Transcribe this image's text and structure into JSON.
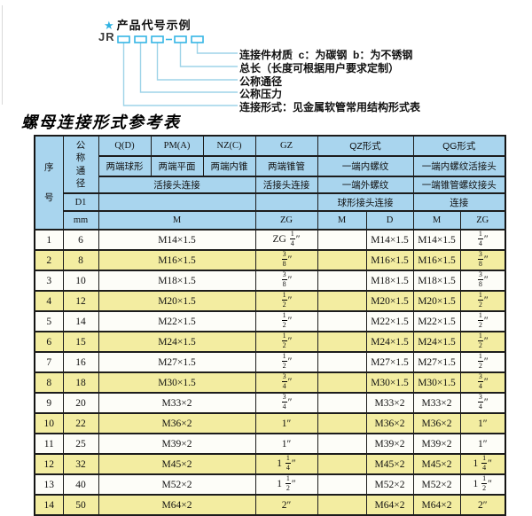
{
  "colors": {
    "accent_cyan": "#2fb2e2",
    "leader_line": "#9ed4e8",
    "header_bg": "#a9d5ee",
    "row_alt_bg": "#f3eda1",
    "row_bg": "#fdfdf8",
    "border": "#1c1c1c"
  },
  "diagram": {
    "star": "★",
    "heading": "产品代号示例",
    "code_prefix": "JR",
    "labels": [
      "连接件材质  c：为碳钢  b：为不锈钢",
      "总长（长度可根据用户要求定制）",
      "公称通径",
      "公称压力",
      "连接形式：见金属软管常用结构形式表"
    ]
  },
  "table": {
    "title": "螺母连接形式参考表",
    "header": {
      "seq": "序\n号",
      "dn": "公\n称\n通\n径",
      "type_q": "Q(D)",
      "type_pm": "PM(A)",
      "type_nz": "NZ(C)",
      "type_gz": "GZ",
      "type_qz": "QZ形式",
      "type_qg": "QG形式",
      "desc_q": "两端球形",
      "desc_pm": "两端平面",
      "desc_nz": "两端内锥",
      "desc_gz": "两端锥管",
      "desc_qz1": "一端内螺纹",
      "desc_qg1": "一端内螺纹活接头",
      "union_left": "活接头连接",
      "union_gz": "活接头连接",
      "desc_qz2": "一端外螺纹",
      "desc_qg2": "一端锥管螺纹接头",
      "d1": "D1",
      "ball_joint": "球形接头连接",
      "connect": "连接",
      "mm": "mm",
      "m_span": "M",
      "unit_gz": "ZG",
      "unit_qz_m": "M",
      "unit_qz_d": "D",
      "unit_qg_m": "M",
      "unit_qg_zg": "ZG"
    },
    "rows": [
      {
        "seq": "1",
        "dn": "6",
        "m": "M14×1.5",
        "gz": "ZG 1/4″",
        "qz_m": "",
        "qz_d": "M14×1.5",
        "qg_m": "M14×1.5",
        "qg_zg": "1/4″"
      },
      {
        "seq": "2",
        "dn": "8",
        "m": "M16×1.5",
        "gz": "3/8″",
        "qz_m": "",
        "qz_d": "M16×1.5",
        "qg_m": "M16×1.5",
        "qg_zg": "3/8″"
      },
      {
        "seq": "3",
        "dn": "10",
        "m": "M18×1.5",
        "gz": "3/8″",
        "qz_m": "",
        "qz_d": "M18×1.5",
        "qg_m": "M18×1.5",
        "qg_zg": "3/8″"
      },
      {
        "seq": "4",
        "dn": "12",
        "m": "M20×1.5",
        "gz": "1/2″",
        "qz_m": "",
        "qz_d": "M20×1.5",
        "qg_m": "M20×1.5",
        "qg_zg": "1/2″"
      },
      {
        "seq": "5",
        "dn": "14",
        "m": "M22×1.5",
        "gz": "1/2″",
        "qz_m": "",
        "qz_d": "M22×1.5",
        "qg_m": "M22×1.5",
        "qg_zg": "1/2″"
      },
      {
        "seq": "6",
        "dn": "15",
        "m": "M24×1.5",
        "gz": "1/2″",
        "qz_m": "",
        "qz_d": "M24×1.5",
        "qg_m": "M24×1.5",
        "qg_zg": "1/2″"
      },
      {
        "seq": "7",
        "dn": "16",
        "m": "M27×1.5",
        "gz": "1/2″",
        "qz_m": "",
        "qz_d": "M27×1.5",
        "qg_m": "M27×1.5",
        "qg_zg": "1/2″"
      },
      {
        "seq": "8",
        "dn": "18",
        "m": "M30×1.5",
        "gz": "3/4″",
        "qz_m": "",
        "qz_d": "M30×1.5",
        "qg_m": "M30×1.5",
        "qg_zg": "3/4″"
      },
      {
        "seq": "9",
        "dn": "20",
        "m": "M33×2",
        "gz": "3/4″",
        "qz_m": "",
        "qz_d": "M33×2",
        "qg_m": "M33×2",
        "qg_zg": "3/4″"
      },
      {
        "seq": "10",
        "dn": "22",
        "m": "M36×2",
        "gz": "1″",
        "qz_m": "",
        "qz_d": "M36×2",
        "qg_m": "M36×2",
        "qg_zg": "1″"
      },
      {
        "seq": "11",
        "dn": "25",
        "m": "M39×2",
        "gz": "1″",
        "qz_m": "",
        "qz_d": "M39×2",
        "qg_m": "M39×2",
        "qg_zg": "1″"
      },
      {
        "seq": "12",
        "dn": "32",
        "m": "M45×2",
        "gz": "1 1/4″",
        "qz_m": "",
        "qz_d": "M45×2",
        "qg_m": "M45×2",
        "qg_zg": "1 1/4″"
      },
      {
        "seq": "13",
        "dn": "40",
        "m": "M52×2",
        "gz": "1 1/2″",
        "qz_m": "",
        "qz_d": "M52×2",
        "qg_m": "M52×2",
        "qg_zg": "1 1/2″"
      },
      {
        "seq": "14",
        "dn": "50",
        "m": "M64×2",
        "gz": "2″",
        "qz_m": "",
        "qz_d": "M64×2",
        "qg_m": "M64×2",
        "qg_zg": "2″"
      }
    ]
  }
}
